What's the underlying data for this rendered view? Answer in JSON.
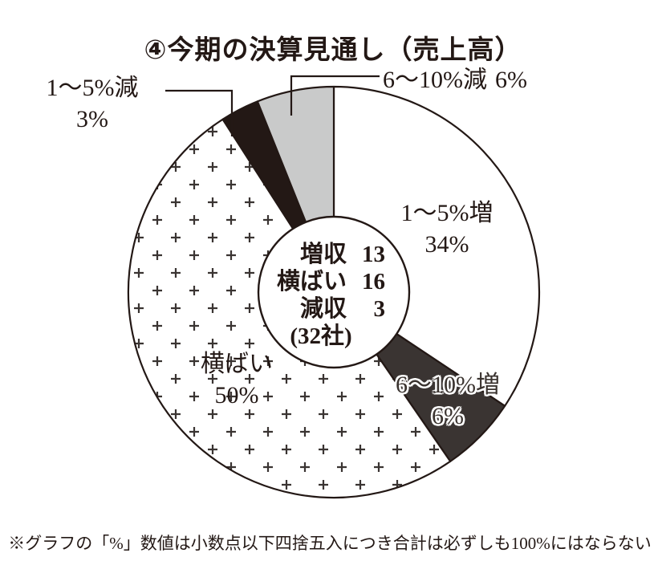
{
  "title": "④今期の決算見通し（売上高）",
  "footnote": "※グラフの「%」数値は小数点以下四捨五入につき合計は必ずしも100%にはならない",
  "colors": {
    "ink": "#231815",
    "background": "#ffffff",
    "slice_white": "#ffffff",
    "slice_dark_gray": "#3a3432",
    "slice_light_gray": "#c9caca",
    "slice_black": "#231815",
    "pattern_plus_ink": "#3a3432"
  },
  "chart_data": {
    "type": "pie",
    "title": "④今期の決算見通し（売上高）",
    "donut": true,
    "start_angle_deg": 0,
    "direction": "clockwise",
    "slices": [
      {
        "label": "1〜5%増",
        "pct": 34,
        "pct_label": "34%",
        "color": "#ffffff",
        "label_placement": "inside"
      },
      {
        "label": "6〜10%増",
        "pct": 6,
        "pct_label": "6%",
        "color": "#3a3432",
        "label_placement": "inside-halo"
      },
      {
        "label": "横ばい",
        "pct": 50,
        "pct_label": "50%",
        "color": "pattern-plus",
        "label_placement": "inside"
      },
      {
        "label": "1〜5%減",
        "pct": 3,
        "pct_label": "3%",
        "color": "#231815",
        "label_placement": "callout"
      },
      {
        "label": "6〜10%減",
        "pct": 6,
        "pct_label": "6%",
        "color": "#c9caca",
        "label_placement": "callout"
      }
    ],
    "center_label": {
      "rows": [
        {
          "label": "増収",
          "value": "13"
        },
        {
          "label": "横ばい",
          "value": "16"
        },
        {
          "label": "減収",
          "value": "3"
        }
      ],
      "total": "(32社)"
    }
  }
}
